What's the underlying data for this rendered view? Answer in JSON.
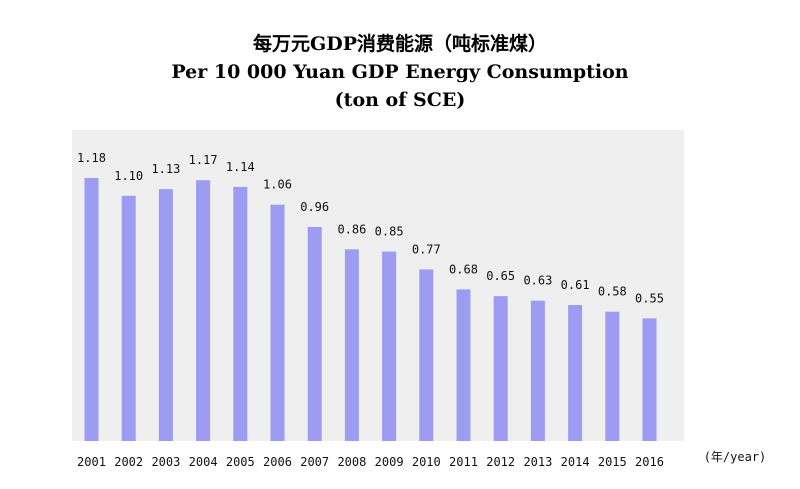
{
  "chart_data": {
    "type": "bar",
    "title": "每万元GDP消费能源（吨标准煤）",
    "subtitle_en": "Per 10 000 Yuan GDP Energy Consumption",
    "unit_en": "(ton of SCE)",
    "x_unit_label": "(年/year)",
    "categories": [
      "2001",
      "2002",
      "2003",
      "2004",
      "2005",
      "2006",
      "2007",
      "2008",
      "2009",
      "2010",
      "2011",
      "2012",
      "2013",
      "2014",
      "2015",
      "2016"
    ],
    "values": [
      1.18,
      1.1,
      1.13,
      1.17,
      1.14,
      1.06,
      0.96,
      0.86,
      0.85,
      0.77,
      0.68,
      0.65,
      0.63,
      0.61,
      0.58,
      0.55
    ],
    "value_labels": [
      "1.18",
      "1.10",
      "1.13",
      "1.17",
      "1.14",
      "1.06",
      "0.96",
      "0.86",
      "0.85",
      "0.77",
      "0.68",
      "0.65",
      "0.63",
      "0.61",
      "0.58",
      "0.55"
    ],
    "ylim": [
      0,
      1.18
    ],
    "grid": false,
    "legend": "none",
    "bar_color": "#9d9cf2",
    "plot_background": "#efefef"
  }
}
